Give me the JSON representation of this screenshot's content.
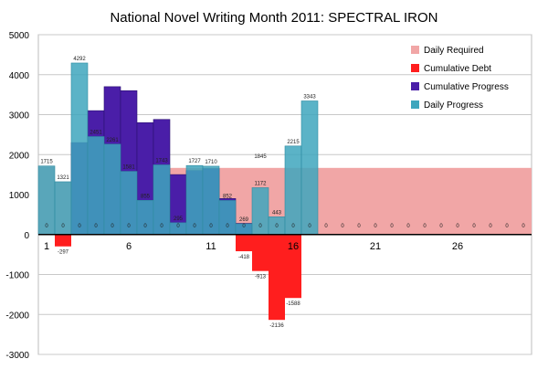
{
  "chart_data": {
    "type": "bar",
    "title": "National Novel Writing Month 2011: SPECTRAL IRON",
    "xlabel": "",
    "ylabel": "",
    "ylim": [
      -3000,
      5000
    ],
    "yticks": [
      5000,
      4000,
      3000,
      2000,
      1000,
      0,
      -1000,
      -2000,
      -3000
    ],
    "x": [
      1,
      2,
      3,
      4,
      5,
      6,
      7,
      8,
      9,
      10,
      11,
      12,
      13,
      14,
      15,
      16,
      17,
      18,
      19,
      20,
      21,
      22,
      23,
      24,
      25,
      26,
      27,
      28,
      29,
      30
    ],
    "xtick_labels": [
      "1",
      "6",
      "11",
      "16",
      "21",
      "26"
    ],
    "grid": true,
    "legend_position": "top-right",
    "series": [
      {
        "name": "Daily Required",
        "color": "#f1a6a6",
        "values": [
          1715,
          1321,
          0,
          0,
          0,
          0,
          0,
          0,
          1667,
          1667,
          1667,
          1667,
          1667,
          1667,
          1667,
          1667,
          1667,
          1667,
          1667,
          1667,
          1667,
          1667,
          1667,
          1667,
          1667,
          1667,
          1667,
          1667,
          1667,
          1667
        ]
      },
      {
        "name": "Cumulative Debt",
        "color": "#ff1e1e",
        "values": [
          0,
          -297,
          0,
          0,
          0,
          0,
          0,
          0,
          0,
          0,
          0,
          0,
          -418,
          -913,
          -2136,
          -1588,
          0,
          0,
          0,
          0,
          0,
          0,
          0,
          0,
          0,
          0,
          0,
          0,
          0,
          0
        ]
      },
      {
        "name": "Cumulative Progress",
        "color": "#4a1ea8",
        "values": [
          0,
          0,
          2300,
          3100,
          3700,
          3600,
          2800,
          2880,
          1500,
          1600,
          1650,
          900,
          280,
          0,
          0,
          0,
          0,
          0,
          0,
          0,
          0,
          0,
          0,
          0,
          0,
          0,
          0,
          0,
          0,
          0
        ]
      },
      {
        "name": "Daily Progress",
        "color": "#3ea6bd",
        "values": [
          1715,
          1321,
          4292,
          2451,
          2261,
          1581,
          855,
          1743,
          295,
          1727,
          1710,
          852,
          269,
          1172,
          443,
          2215,
          3343,
          0,
          0,
          0,
          0,
          0,
          0,
          0,
          0,
          0,
          0,
          0,
          0,
          0
        ]
      }
    ],
    "data_labels": [
      {
        "day": 1,
        "text": "1715",
        "y": 1715
      },
      {
        "day": 2,
        "text": "1321",
        "y": 1321
      },
      {
        "day": 2,
        "text": "-297",
        "y": -297
      },
      {
        "day": 3,
        "text": "4292",
        "y": 4292
      },
      {
        "day": 4,
        "text": "2451",
        "y": 2451
      },
      {
        "day": 5,
        "text": "2261",
        "y": 2261
      },
      {
        "day": 6,
        "text": "1581",
        "y": 1581
      },
      {
        "day": 7,
        "text": "855",
        "y": 855
      },
      {
        "day": 8,
        "text": "1743",
        "y": 1743
      },
      {
        "day": 9,
        "text": "295",
        "y": 295
      },
      {
        "day": 10,
        "text": "1727",
        "y": 1727
      },
      {
        "day": 11,
        "text": "1710",
        "y": 1710
      },
      {
        "day": 12,
        "text": "852",
        "y": 852
      },
      {
        "day": 13,
        "text": "269",
        "y": 269
      },
      {
        "day": 13,
        "text": "-418",
        "y": -418
      },
      {
        "day": 14,
        "text": "1845",
        "y": 1845
      },
      {
        "day": 14,
        "text": "1172",
        "y": 1172
      },
      {
        "day": 14,
        "text": "-913",
        "y": -913
      },
      {
        "day": 15,
        "text": "443",
        "y": 443
      },
      {
        "day": 15,
        "text": "-2136",
        "y": -2136
      },
      {
        "day": 16,
        "text": "2215",
        "y": 2215
      },
      {
        "day": 16,
        "text": "-1588",
        "y": -1588
      },
      {
        "day": 17,
        "text": "3343",
        "y": 3343
      }
    ],
    "zero_labels": [
      {
        "text": "0"
      }
    ]
  }
}
